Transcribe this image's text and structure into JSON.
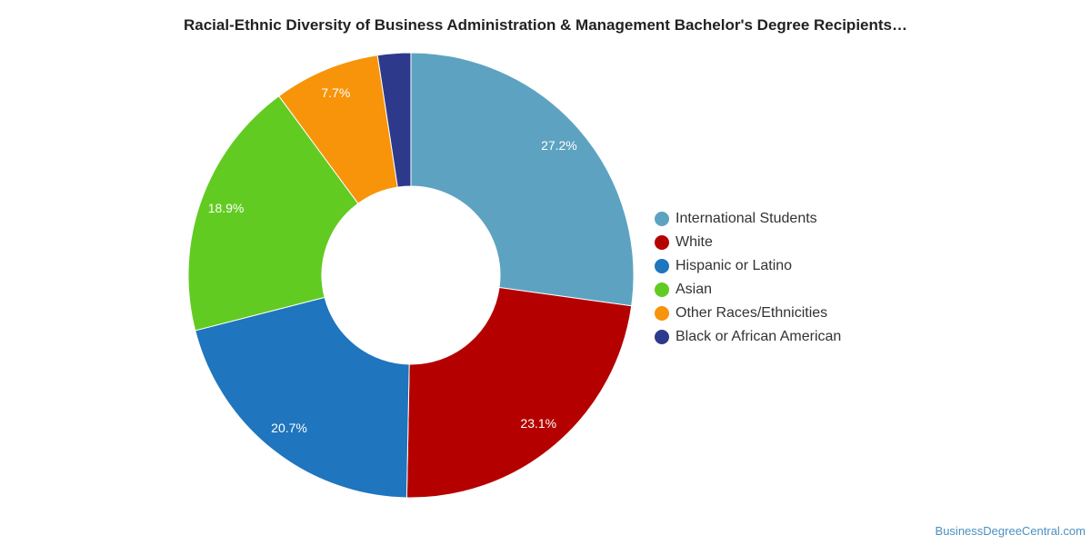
{
  "chart_data": {
    "type": "pie",
    "title": "Racial-Ethnic Diversity of Business Administration & Management Bachelor's Degree Recipients…",
    "legend_position": "right",
    "slices": [
      {
        "name": "International Students",
        "value": 27.2,
        "label": "27.2%",
        "color": "#5da3c1"
      },
      {
        "name": "White",
        "value": 23.1,
        "label": "23.1%",
        "color": "#b50000"
      },
      {
        "name": "Hispanic or Latino",
        "value": 20.7,
        "label": "20.7%",
        "color": "#1f75be"
      },
      {
        "name": "Asian",
        "value": 18.9,
        "label": "18.9%",
        "color": "#62cb22"
      },
      {
        "name": "Other Races/Ethnicities",
        "value": 7.7,
        "label": "7.7%",
        "color": "#f7940a"
      },
      {
        "name": "Black or African American",
        "value": 2.4,
        "label": "",
        "color": "#2d3a8c"
      }
    ]
  },
  "credit": "BusinessDegreeCentral.com"
}
